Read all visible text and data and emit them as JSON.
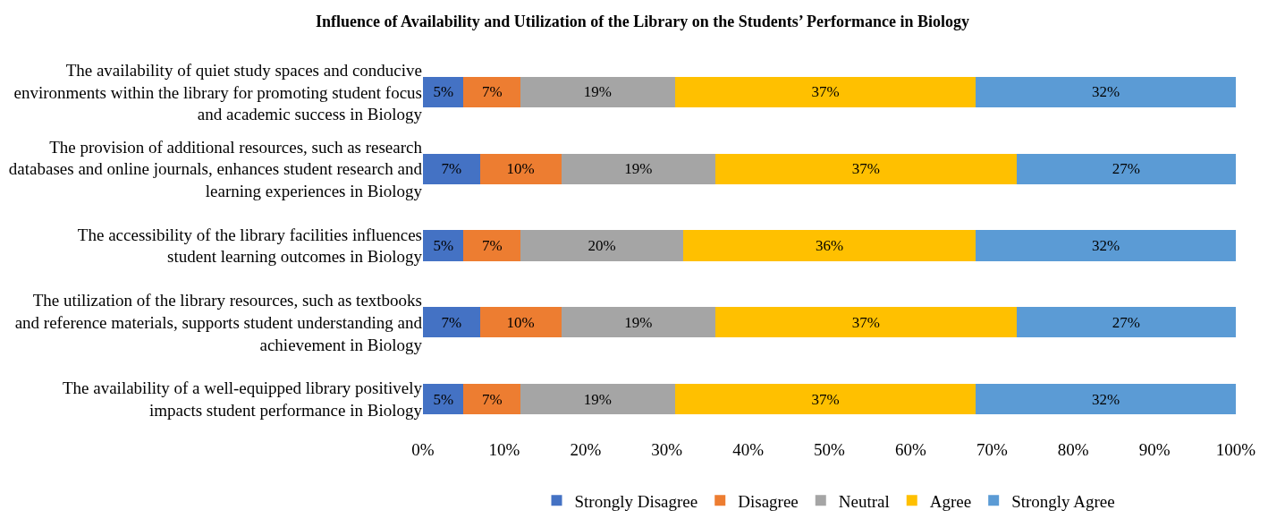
{
  "chart_data": {
    "type": "bar",
    "orientation": "horizontal",
    "stacked": true,
    "title": "Influence of Availability and Utilization of the Library on the Students’ Performance in Biology",
    "categories": [
      "The availability of quiet study spaces and conducive environments within the library for promoting student focus and academic success in Biology",
      "The provision of additional resources, such as research databases and online journals, enhances student research and learning experiences in Biology",
      "The accessibility of the library facilities influences student learning outcomes in Biology",
      "The utilization of the library resources, such as textbooks and reference materials, supports student understanding and achievement in Biology",
      "The availability of a well-equipped library positively impacts student performance in Biology"
    ],
    "series": [
      {
        "name": "Strongly Disagree",
        "color": "#4472c4",
        "values": [
          5,
          7,
          5,
          7,
          5
        ],
        "value_labels": [
          "5%",
          "7%",
          "5%",
          "7%",
          "5%"
        ]
      },
      {
        "name": "Disagree",
        "color": "#ed7d31",
        "values": [
          7,
          10,
          7,
          10,
          7
        ],
        "value_labels": [
          "7%",
          "10%",
          "7%",
          "10%",
          "7%"
        ]
      },
      {
        "name": "Neutral",
        "color": "#a5a5a5",
        "values": [
          19,
          19,
          20,
          19,
          19
        ],
        "value_labels": [
          "19%",
          "19%",
          "20%",
          "19%",
          "19%"
        ]
      },
      {
        "name": "Agree",
        "color": "#ffc000",
        "values": [
          37,
          37,
          36,
          37,
          37
        ],
        "value_labels": [
          "37%",
          "37%",
          "36%",
          "37%",
          "37%"
        ]
      },
      {
        "name": "Strongly Agree",
        "color": "#5b9bd5",
        "values": [
          32,
          27,
          32,
          27,
          32
        ],
        "value_labels": [
          "32%",
          "27%",
          "32%",
          "27%",
          "32%"
        ]
      }
    ],
    "xlim": [
      0,
      100
    ],
    "xticks": [
      {
        "value": 0,
        "label": "0%"
      },
      {
        "value": 10,
        "label": "10%"
      },
      {
        "value": 20,
        "label": "20%"
      },
      {
        "value": 30,
        "label": "30%"
      },
      {
        "value": 40,
        "label": "40%"
      },
      {
        "value": 50,
        "label": "50%"
      },
      {
        "value": 60,
        "label": "60%"
      },
      {
        "value": 70,
        "label": "70%"
      },
      {
        "value": 80,
        "label": "80%"
      },
      {
        "value": 90,
        "label": "90%"
      },
      {
        "value": 100,
        "label": "100%"
      }
    ],
    "grid": false,
    "legend": "bottom"
  }
}
